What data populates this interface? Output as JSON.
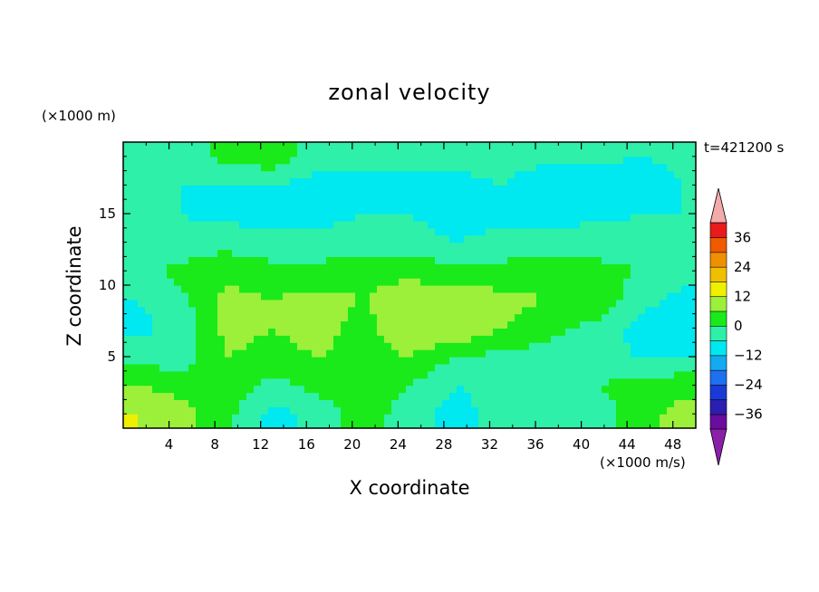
{
  "chart_data": {
    "type": "heatmap",
    "title": "zonal velocity",
    "xlabel": "X coordinate",
    "ylabel": "Z coordinate",
    "x_unit_label": "(×1000 m/s)",
    "y_unit_label": "(×1000 m)",
    "time_label": "t=421200 s",
    "xlim": [
      0,
      50
    ],
    "ylim": [
      0,
      20
    ],
    "x_ticks": [
      4,
      8,
      12,
      16,
      20,
      24,
      28,
      32,
      36,
      40,
      44,
      48
    ],
    "y_ticks": [
      5,
      10,
      15
    ],
    "colorbar": {
      "levels": [
        -42,
        -36,
        -30,
        -24,
        -18,
        -12,
        -6,
        0,
        6,
        12,
        18,
        24,
        30,
        36,
        42
      ],
      "tick_labels": [
        "36",
        "24",
        "12",
        "0",
        "−12",
        "−24",
        "−36"
      ],
      "tick_values": [
        36,
        24,
        12,
        0,
        -12,
        -24,
        -36
      ],
      "colors": [
        "#6a0d9e",
        "#2a1fb0",
        "#1a3ad8",
        "#1e70ee",
        "#14aaf0",
        "#00e8f0",
        "#2ef0a8",
        "#1aea1a",
        "#9cf03a",
        "#eef000",
        "#f0c000",
        "#f09000",
        "#f05a00",
        "#e81a1a"
      ],
      "under_color": "#8a20a8",
      "over_color": "#f2aaaa"
    },
    "field_grid": {
      "x": [
        1,
        5,
        9,
        13,
        17,
        21,
        25,
        29,
        33,
        37,
        41,
        45,
        49
      ],
      "z": [
        1,
        3,
        5,
        7,
        9,
        11,
        13,
        15,
        17,
        19
      ],
      "values": [
        [
          12,
          8,
          2,
          -8,
          -4,
          4,
          -4,
          -8,
          -4,
          -2,
          -4,
          4,
          8
        ],
        [
          6,
          4,
          4,
          -2,
          2,
          4,
          0,
          -6,
          -4,
          -2,
          0,
          2,
          4
        ],
        [
          -2,
          -4,
          6,
          4,
          6,
          4,
          6,
          0,
          -2,
          -2,
          -4,
          -6,
          -6
        ],
        [
          -8,
          -4,
          8,
          6,
          8,
          4,
          10,
          12,
          6,
          2,
          -2,
          -8,
          -10
        ],
        [
          -6,
          -2,
          8,
          6,
          8,
          6,
          10,
          10,
          8,
          6,
          6,
          -4,
          -8
        ],
        [
          -4,
          2,
          4,
          2,
          2,
          4,
          4,
          2,
          2,
          4,
          2,
          0,
          -4
        ],
        [
          -6,
          -4,
          -2,
          -4,
          -4,
          -4,
          -4,
          -6,
          -4,
          -4,
          -2,
          -4,
          -6
        ],
        [
          -6,
          -6,
          -8,
          -8,
          -8,
          -6,
          -6,
          -8,
          -8,
          -8,
          -8,
          -6,
          -6
        ],
        [
          -4,
          -6,
          -6,
          -6,
          -8,
          -8,
          -8,
          -8,
          -6,
          -10,
          -10,
          -10,
          -6
        ],
        [
          -2,
          -4,
          2,
          4,
          -4,
          -4,
          -4,
          -4,
          -4,
          -4,
          -4,
          -6,
          -4
        ]
      ]
    }
  }
}
